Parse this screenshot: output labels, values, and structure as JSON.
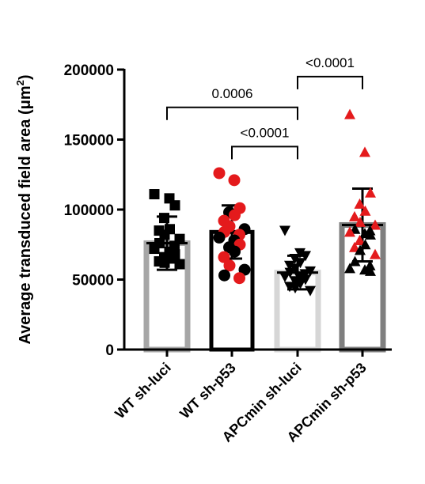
{
  "chart_data": {
    "type": "bar",
    "ylabel_main": "Average transduced field area (",
    "ylabel_unit": "μm",
    "ylabel_sup": "2",
    "ylabel_close": ")",
    "ylim": [
      0,
      200000
    ],
    "yticks": [
      0,
      50000,
      100000,
      150000,
      200000
    ],
    "ytick_labels": [
      "0",
      "50000",
      "100000",
      "150000",
      "200000"
    ],
    "categories": [
      "WT sh-luci",
      "WT sh-p53",
      "APCmin sh-luci",
      "APCmin sh-p53"
    ],
    "bar_colors": [
      "#a6a6a6",
      "#000000",
      "#d6d6d6",
      "#7f7f7f"
    ],
    "series": [
      {
        "means": [
          76000,
          84000,
          55000,
          89000
        ],
        "sd": [
          19000,
          19000,
          12000,
          26000
        ],
        "points": [
          [
            {
              "y": 111000,
              "marker": "square",
              "color": "#000000"
            },
            {
              "y": 108000,
              "marker": "square",
              "color": "#000000"
            },
            {
              "y": 103000,
              "marker": "square",
              "color": "#000000"
            },
            {
              "y": 94000,
              "marker": "square",
              "color": "#000000"
            },
            {
              "y": 86000,
              "marker": "square",
              "color": "#000000"
            },
            {
              "y": 85000,
              "marker": "square",
              "color": "#000000"
            },
            {
              "y": 82000,
              "marker": "square",
              "color": "#000000"
            },
            {
              "y": 79000,
              "marker": "square",
              "color": "#000000"
            },
            {
              "y": 76000,
              "marker": "square",
              "color": "#000000"
            },
            {
              "y": 74000,
              "marker": "square",
              "color": "#000000"
            },
            {
              "y": 72000,
              "marker": "square",
              "color": "#000000"
            },
            {
              "y": 70000,
              "marker": "square",
              "color": "#000000"
            },
            {
              "y": 68000,
              "marker": "square",
              "color": "#000000"
            },
            {
              "y": 66000,
              "marker": "square",
              "color": "#000000"
            },
            {
              "y": 65000,
              "marker": "square",
              "color": "#000000"
            },
            {
              "y": 63000,
              "marker": "square",
              "color": "#000000"
            },
            {
              "y": 62000,
              "marker": "square",
              "color": "#000000"
            },
            {
              "y": 61000,
              "marker": "square",
              "color": "#000000"
            }
          ],
          [
            {
              "y": 126000,
              "marker": "circle",
              "color": "#e41a1c"
            },
            {
              "y": 121000,
              "marker": "circle",
              "color": "#e41a1c"
            },
            {
              "y": 101000,
              "marker": "circle",
              "color": "#e41a1c"
            },
            {
              "y": 98000,
              "marker": "circle",
              "color": "#000000"
            },
            {
              "y": 96000,
              "marker": "circle",
              "color": "#e41a1c"
            },
            {
              "y": 92000,
              "marker": "circle",
              "color": "#e41a1c"
            },
            {
              "y": 88000,
              "marker": "circle",
              "color": "#e41a1c"
            },
            {
              "y": 86000,
              "marker": "circle",
              "color": "#000000"
            },
            {
              "y": 84000,
              "marker": "circle",
              "color": "#e41a1c"
            },
            {
              "y": 82000,
              "marker": "circle",
              "color": "#e41a1c"
            },
            {
              "y": 80000,
              "marker": "circle",
              "color": "#000000"
            },
            {
              "y": 78000,
              "marker": "circle",
              "color": "#000000"
            },
            {
              "y": 75000,
              "marker": "circle",
              "color": "#e41a1c"
            },
            {
              "y": 73000,
              "marker": "circle",
              "color": "#000000"
            },
            {
              "y": 70000,
              "marker": "circle",
              "color": "#000000"
            },
            {
              "y": 66000,
              "marker": "circle",
              "color": "#e41a1c"
            },
            {
              "y": 60000,
              "marker": "circle",
              "color": "#e41a1c"
            },
            {
              "y": 57000,
              "marker": "circle",
              "color": "#000000"
            },
            {
              "y": 53000,
              "marker": "circle",
              "color": "#000000"
            },
            {
              "y": 51000,
              "marker": "circle",
              "color": "#e41a1c"
            }
          ],
          [
            {
              "y": 85000,
              "marker": "triangle-down",
              "color": "#000000"
            },
            {
              "y": 69000,
              "marker": "triangle-down",
              "color": "#000000"
            },
            {
              "y": 67000,
              "marker": "triangle-down",
              "color": "#000000"
            },
            {
              "y": 65000,
              "marker": "triangle-down",
              "color": "#000000"
            },
            {
              "y": 62000,
              "marker": "triangle-down",
              "color": "#000000"
            },
            {
              "y": 60000,
              "marker": "triangle-down",
              "color": "#000000"
            },
            {
              "y": 58000,
              "marker": "triangle-down",
              "color": "#000000"
            },
            {
              "y": 56000,
              "marker": "triangle-down",
              "color": "#000000"
            },
            {
              "y": 55000,
              "marker": "triangle-down",
              "color": "#000000"
            },
            {
              "y": 54000,
              "marker": "triangle-down",
              "color": "#000000"
            },
            {
              "y": 52000,
              "marker": "triangle-down",
              "color": "#000000"
            },
            {
              "y": 51000,
              "marker": "triangle-down",
              "color": "#000000"
            },
            {
              "y": 50000,
              "marker": "triangle-down",
              "color": "#000000"
            },
            {
              "y": 49000,
              "marker": "triangle-down",
              "color": "#000000"
            },
            {
              "y": 47000,
              "marker": "triangle-down",
              "color": "#000000"
            },
            {
              "y": 45000,
              "marker": "triangle-down",
              "color": "#000000"
            },
            {
              "y": 44000,
              "marker": "triangle-down",
              "color": "#000000"
            },
            {
              "y": 42000,
              "marker": "triangle-down",
              "color": "#000000"
            }
          ],
          [
            {
              "y": 168000,
              "marker": "triangle-up",
              "color": "#e41a1c"
            },
            {
              "y": 141000,
              "marker": "triangle-up",
              "color": "#e41a1c"
            },
            {
              "y": 112000,
              "marker": "triangle-up",
              "color": "#e41a1c"
            },
            {
              "y": 104000,
              "marker": "triangle-up",
              "color": "#e41a1c"
            },
            {
              "y": 99000,
              "marker": "triangle-up",
              "color": "#e41a1c"
            },
            {
              "y": 95000,
              "marker": "triangle-up",
              "color": "#e41a1c"
            },
            {
              "y": 91000,
              "marker": "triangle-up",
              "color": "#e41a1c"
            },
            {
              "y": 89000,
              "marker": "triangle-up",
              "color": "#e41a1c"
            },
            {
              "y": 86000,
              "marker": "triangle-up",
              "color": "#000000"
            },
            {
              "y": 85000,
              "marker": "triangle-up",
              "color": "#000000"
            },
            {
              "y": 84000,
              "marker": "triangle-up",
              "color": "#e41a1c"
            },
            {
              "y": 83000,
              "marker": "triangle-up",
              "color": "#000000"
            },
            {
              "y": 82000,
              "marker": "triangle-up",
              "color": "#000000"
            },
            {
              "y": 78000,
              "marker": "triangle-up",
              "color": "#e41a1c"
            },
            {
              "y": 75000,
              "marker": "triangle-up",
              "color": "#000000"
            },
            {
              "y": 73000,
              "marker": "triangle-up",
              "color": "#e41a1c"
            },
            {
              "y": 71000,
              "marker": "triangle-up",
              "color": "#000000"
            },
            {
              "y": 68000,
              "marker": "triangle-up",
              "color": "#e41a1c"
            },
            {
              "y": 63000,
              "marker": "triangle-up",
              "color": "#000000"
            },
            {
              "y": 60000,
              "marker": "triangle-up",
              "color": "#000000"
            },
            {
              "y": 58000,
              "marker": "triangle-up",
              "color": "#000000"
            },
            {
              "y": 57000,
              "marker": "triangle-up",
              "color": "#000000"
            },
            {
              "y": 56000,
              "marker": "triangle-up",
              "color": "#000000"
            }
          ]
        ]
      }
    ],
    "comparisons": [
      {
        "from": 0,
        "to": 2,
        "label": "0.0006",
        "y": 173000
      },
      {
        "from": 1,
        "to": 2,
        "label": "<0.0001",
        "y": 145000
      },
      {
        "from": 2,
        "to": 3,
        "label": "<0.0001",
        "y": 195000
      }
    ],
    "grid": false
  }
}
